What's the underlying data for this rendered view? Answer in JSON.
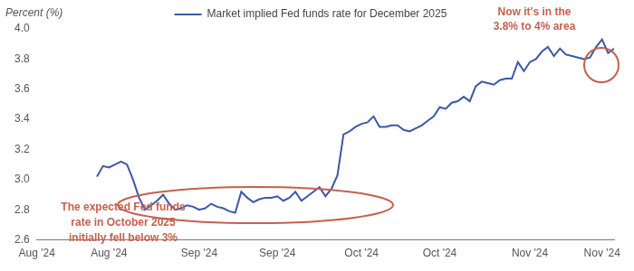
{
  "chart_data": {
    "type": "line",
    "y_label": "Percent (%)",
    "legend": "top",
    "grid": false,
    "categories": [
      "Aug '24",
      null,
      null,
      null,
      null,
      null,
      null,
      null,
      null,
      null,
      null,
      null,
      "Aug '24",
      null,
      null,
      null,
      null,
      null,
      null,
      null,
      null,
      null,
      null,
      null,
      null,
      null,
      null,
      "Sep '24",
      null,
      null,
      null,
      null,
      null,
      null,
      null,
      null,
      null,
      null,
      null,
      null,
      "Sep '24",
      null,
      null,
      null,
      null,
      null,
      null,
      null,
      null,
      null,
      null,
      null,
      null,
      null,
      "Oct '24",
      null,
      null,
      null,
      null,
      null,
      null,
      null,
      null,
      null,
      null,
      null,
      null,
      "Oct '24",
      null,
      null,
      null,
      null,
      null,
      null,
      null,
      null,
      null,
      null,
      null,
      null,
      null,
      null,
      "Nov '24",
      null,
      null,
      null,
      null,
      null,
      null,
      null,
      null,
      null,
      null,
      null,
      "Nov '24",
      null,
      null
    ],
    "series": [
      {
        "name": "Market implied Fed funds rate for December 2025",
        "color": "#3d57a6",
        "values": [
          null,
          null,
          null,
          null,
          null,
          null,
          null,
          null,
          null,
          null,
          3.02,
          3.09,
          3.08,
          3.1,
          3.12,
          3.1,
          3.0,
          2.88,
          2.8,
          2.83,
          2.86,
          2.9,
          2.84,
          2.8,
          2.81,
          2.83,
          2.82,
          2.8,
          2.81,
          2.84,
          2.82,
          2.81,
          2.79,
          2.78,
          2.92,
          2.88,
          2.85,
          2.87,
          2.88,
          2.88,
          2.89,
          2.86,
          2.88,
          2.92,
          2.86,
          2.89,
          2.92,
          2.95,
          2.89,
          2.94,
          3.03,
          3.3,
          3.32,
          3.35,
          3.37,
          3.38,
          3.42,
          3.35,
          3.35,
          3.36,
          3.36,
          3.33,
          3.32,
          3.34,
          3.36,
          3.39,
          3.42,
          3.48,
          3.47,
          3.51,
          3.52,
          3.55,
          3.52,
          3.62,
          3.65,
          3.64,
          3.63,
          3.66,
          3.67,
          3.67,
          3.78,
          3.72,
          3.78,
          3.8,
          3.85,
          3.88,
          3.82,
          3.87,
          3.83,
          3.82,
          3.81,
          3.8,
          3.81,
          3.88,
          3.93,
          3.84,
          3.87
        ]
      }
    ],
    "ylim": [
      2.6,
      4.0
    ],
    "yticks": [
      2.6,
      2.8,
      {
        "value": 3,
        "label": "3.0"
      },
      3.2,
      3.4,
      3.6,
      3.8,
      {
        "value": 4,
        "label": "4.0"
      }
    ],
    "annotations": [
      {
        "text": "The expected Fed funds\nrate in October 2025\ninitially fell below 3%"
      },
      {
        "text": "Now it's in the\n3.8% to 4% area"
      }
    ]
  }
}
